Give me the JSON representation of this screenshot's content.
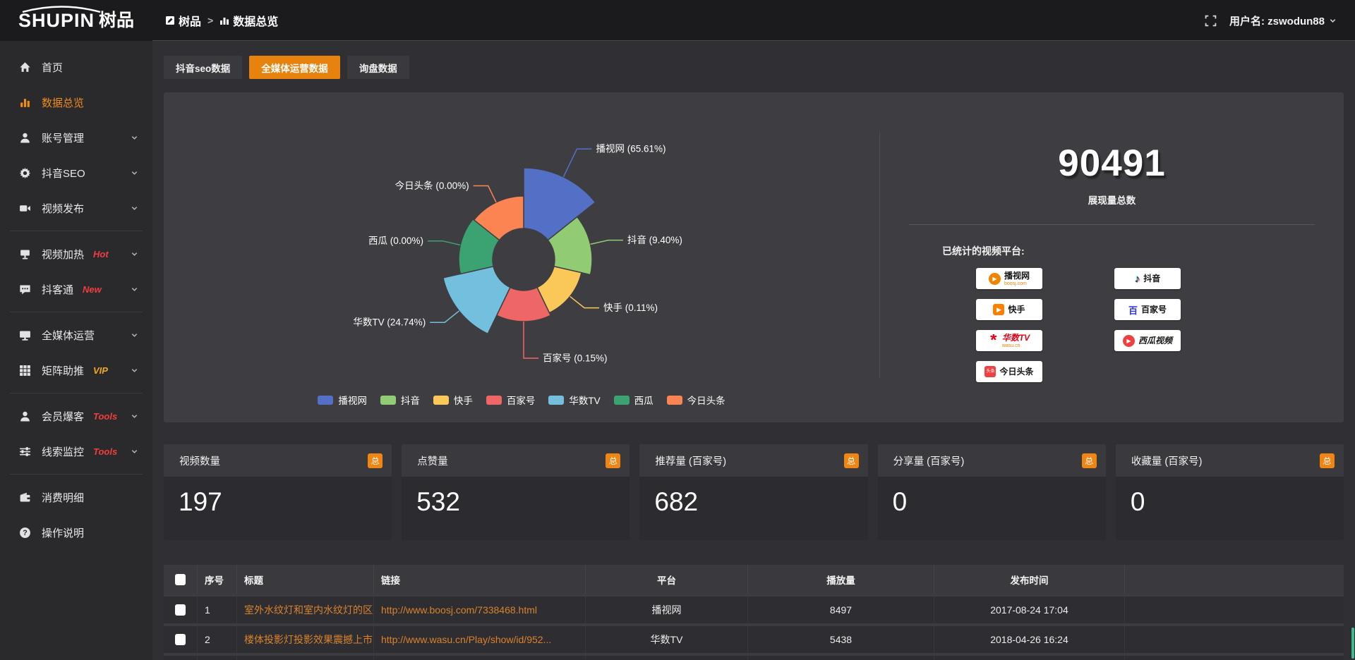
{
  "topbar": {
    "logo_en": "SHUPIN",
    "logo_cn": "树品",
    "breadcrumb": {
      "root": "树品",
      "separator": ">",
      "current": "数据总览"
    },
    "username": "用户名: zswodun88"
  },
  "sidebar": {
    "items": [
      {
        "label": "首页",
        "icon": "home"
      },
      {
        "label": "数据总览",
        "icon": "bar-chart",
        "active": true
      },
      {
        "label": "账号管理",
        "icon": "user",
        "chevron": true
      },
      {
        "label": "抖音SEO",
        "icon": "gear",
        "chevron": true
      },
      {
        "label": "视频发布",
        "icon": "video",
        "chevron": true
      },
      {
        "divider": true
      },
      {
        "label": "视频加热",
        "icon": "screen-stand",
        "badge": "Hot",
        "badge_color": "#f03e3e",
        "chevron": true
      },
      {
        "label": "抖客通",
        "icon": "chat",
        "badge": "New",
        "badge_color": "#f03e3e",
        "chevron": true
      },
      {
        "divider": true
      },
      {
        "label": "全媒体运营",
        "icon": "monitor",
        "chevron": true
      },
      {
        "label": "矩阵助推",
        "icon": "grid",
        "badge": "VIP",
        "badge_color": "#f0a91c",
        "chevron": true
      },
      {
        "divider": true
      },
      {
        "label": "会员爆客",
        "icon": "user",
        "badge": "Tools",
        "badge_color": "#f03e3e",
        "chevron": true
      },
      {
        "label": "线索监控",
        "icon": "sliders",
        "badge": "Tools",
        "badge_color": "#f03e3e",
        "chevron": true
      },
      {
        "divider": true
      },
      {
        "label": "消费明细",
        "icon": "wallet"
      },
      {
        "label": "操作说明",
        "icon": "question"
      }
    ]
  },
  "tabs": {
    "items": [
      "抖音seo数据",
      "全媒体运营数据",
      "询盘数据"
    ],
    "active_index": 1
  },
  "chart_data": {
    "type": "pie",
    "variant": "nightingale-rose",
    "equal_angles": true,
    "inner_radius": 44,
    "legend_position": "bottom",
    "label_format": "{name} ({pct}%)",
    "items": [
      {
        "name": "播视网",
        "pct": "65.61",
        "value": 65.61,
        "color": "#5470c6",
        "radius": 130
      },
      {
        "name": "抖音",
        "pct": "9.40",
        "value": 9.4,
        "color": "#91cc75",
        "radius": 97
      },
      {
        "name": "快手",
        "pct": "0.11",
        "value": 0.11,
        "color": "#fac858",
        "radius": 84
      },
      {
        "name": "百家号",
        "pct": "0.15",
        "value": 0.15,
        "color": "#ee6666",
        "radius": 88
      },
      {
        "name": "华数TV",
        "pct": "24.74",
        "value": 24.74,
        "color": "#73c0de",
        "radius": 117
      },
      {
        "name": "西瓜",
        "pct": "0.00",
        "value": 0,
        "color": "#3ba272",
        "radius": 92
      },
      {
        "name": "今日头条",
        "pct": "0.00",
        "value": 0,
        "color": "#fc8452",
        "radius": 90
      }
    ]
  },
  "summary": {
    "total_value": "90491",
    "total_label": "展现量总数",
    "platforms_label": "已统计的视频平台:",
    "platforms": [
      {
        "name": "播视网",
        "sub": "boosj.com",
        "icon": "boosj-play-icon",
        "column": 1,
        "row": 0
      },
      {
        "name": "快手",
        "icon": "kuaishou-icon",
        "column": 1,
        "row": 1
      },
      {
        "name": "华数TV",
        "sub": "wasu.cn",
        "icon": "wasu-star-icon",
        "column": 1,
        "row": 2,
        "name_color": "#e60012",
        "italic": true
      },
      {
        "name": "今日头条",
        "icon": "toutiao-icon",
        "column": 1,
        "row": 3
      },
      {
        "name": "抖音",
        "icon": "douyin-note-icon",
        "column": 2,
        "row": 0
      },
      {
        "name": "百家号",
        "icon": "baijiahao-icon",
        "column": 2,
        "row": 1
      },
      {
        "name": "西瓜视频",
        "icon": "xigua-play-icon",
        "column": 2,
        "row": 2,
        "italic": true
      }
    ]
  },
  "stat_cards": [
    {
      "title": "视频数量",
      "badge": "总",
      "value": "197"
    },
    {
      "title": "点赞量",
      "badge": "总",
      "value": "532"
    },
    {
      "title": "推荐量 (百家号)",
      "badge": "总",
      "value": "682"
    },
    {
      "title": "分享量 (百家号)",
      "badge": "总",
      "value": "0"
    },
    {
      "title": "收藏量 (百家号)",
      "badge": "总",
      "value": "0"
    }
  ],
  "table": {
    "headers": [
      "序号",
      "标题",
      "链接",
      "平台",
      "播放量",
      "发布时间"
    ],
    "rows": [
      {
        "index": "1",
        "title": "室外水纹灯和室内水纹灯的区别和简介",
        "link": "http://www.boosj.com/7338468.html",
        "platform": "播视网",
        "views": "8497",
        "time": "2017-08-24 17:04"
      },
      {
        "index": "2",
        "title": "楼体投影灯投影效果震撼上市",
        "link": "http://www.wasu.cn/Play/show/id/952...",
        "platform": "华数TV",
        "views": "5438",
        "time": "2018-04-26 16:24"
      }
    ],
    "has_partial_third_row": true
  },
  "colors": {
    "accent_orange": "#e8820e",
    "badge_orange": "#f08514",
    "link_orange": "#d9822b"
  }
}
